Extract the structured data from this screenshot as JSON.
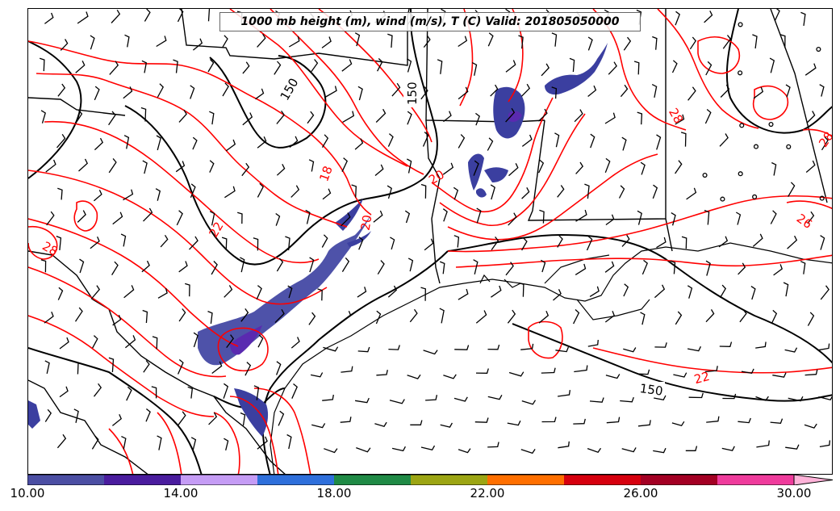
{
  "title": "1000 mb height (m), wind (m/s), T (C) Valid: 201805050000",
  "colors": {
    "temperature_contour": "#ff0000",
    "height_contour": "#000000",
    "borders": "#000000",
    "precip_fill": "#3b3fa0",
    "precip_core": "#5a2ab0"
  },
  "height_contour_labels": [
    "150",
    "150",
    "150"
  ],
  "temperature_contour_labels": [
    "18",
    "20",
    "20",
    "22",
    "22",
    "26",
    "28",
    "28",
    "28"
  ],
  "colorbar": {
    "colors": [
      "#4b4ea3",
      "#4a1c9e",
      "#c59cf5",
      "#2e6fdb",
      "#1f8a45",
      "#9ca513",
      "#ff6f00",
      "#d6000e",
      "#a30023",
      "#ef3b9c",
      "#ffb3d9"
    ],
    "tick_labels": [
      "10.00",
      "14.00",
      "18.00",
      "22.00",
      "26.00",
      "30.00"
    ]
  },
  "icons": [
    "wind-barb-icon",
    "calm-wind-circle-icon"
  ]
}
